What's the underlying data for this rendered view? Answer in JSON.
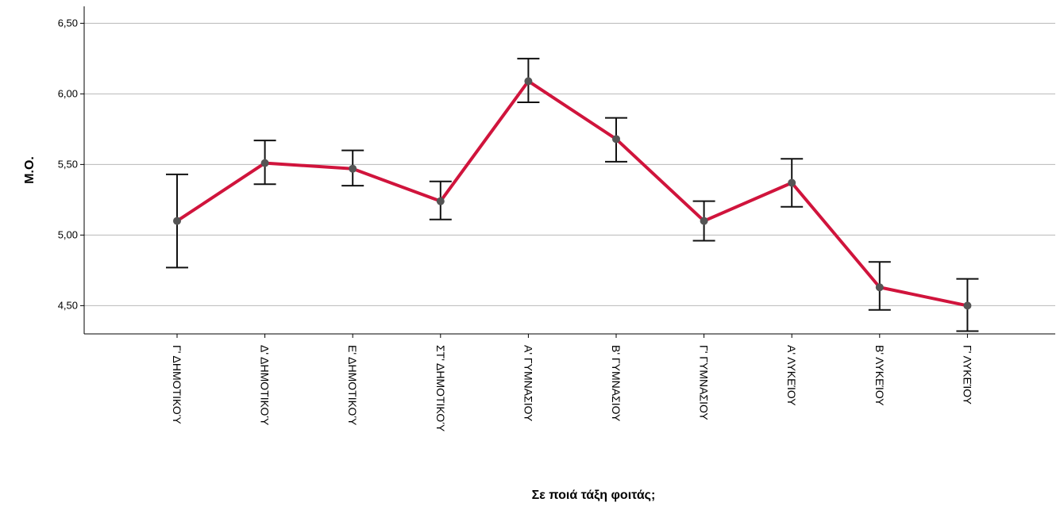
{
  "chart_data": {
    "type": "line",
    "xlabel": "Σε ποιά τάξη φοιτάς;",
    "ylabel": "Μ.Ο.",
    "ylim": [
      4.3,
      6.62
    ],
    "yticks": [
      "4,50",
      "5,00",
      "5,50",
      "6,00",
      "6,50"
    ],
    "ytick_values": [
      4.5,
      5.0,
      5.5,
      6.0,
      6.5
    ],
    "grid": "horizontal",
    "categories": [
      "Γ' ΔΗΜΟΤΙΚΟΎ",
      "Δ' ΔΗΜΟΤΙΚΟΎ",
      "Ε' ΔΗΜΟΤΙΚΟΎ",
      "ΣΤ' ΔΗΜΟΤΙΚΟΎ",
      "Α' ΓΥΜΝΑΣΙΟΥ",
      "Β' ΓΥΜΝΑΣΙΟΥ",
      "Γ' ΓΥΜΝΑΣΙΟΥ",
      "Α' ΛΥΚΕΊΟΥ",
      "Β' ΛΥΚΕΊΟΥ",
      "Γ' ΛΥΚΕΊΟΥ"
    ],
    "series": [
      {
        "values": [
          5.1,
          5.51,
          5.47,
          5.24,
          6.09,
          5.68,
          5.1,
          5.37,
          4.63,
          4.5
        ],
        "err_low": [
          4.77,
          5.36,
          5.35,
          5.11,
          5.94,
          5.52,
          4.96,
          5.2,
          4.47,
          4.32
        ],
        "err_high": [
          5.43,
          5.67,
          5.6,
          5.38,
          6.25,
          5.83,
          5.24,
          5.54,
          4.81,
          4.69
        ],
        "color": "#d0143c",
        "marker_color": "#555555",
        "errorbar_color": "#111111"
      }
    ]
  }
}
